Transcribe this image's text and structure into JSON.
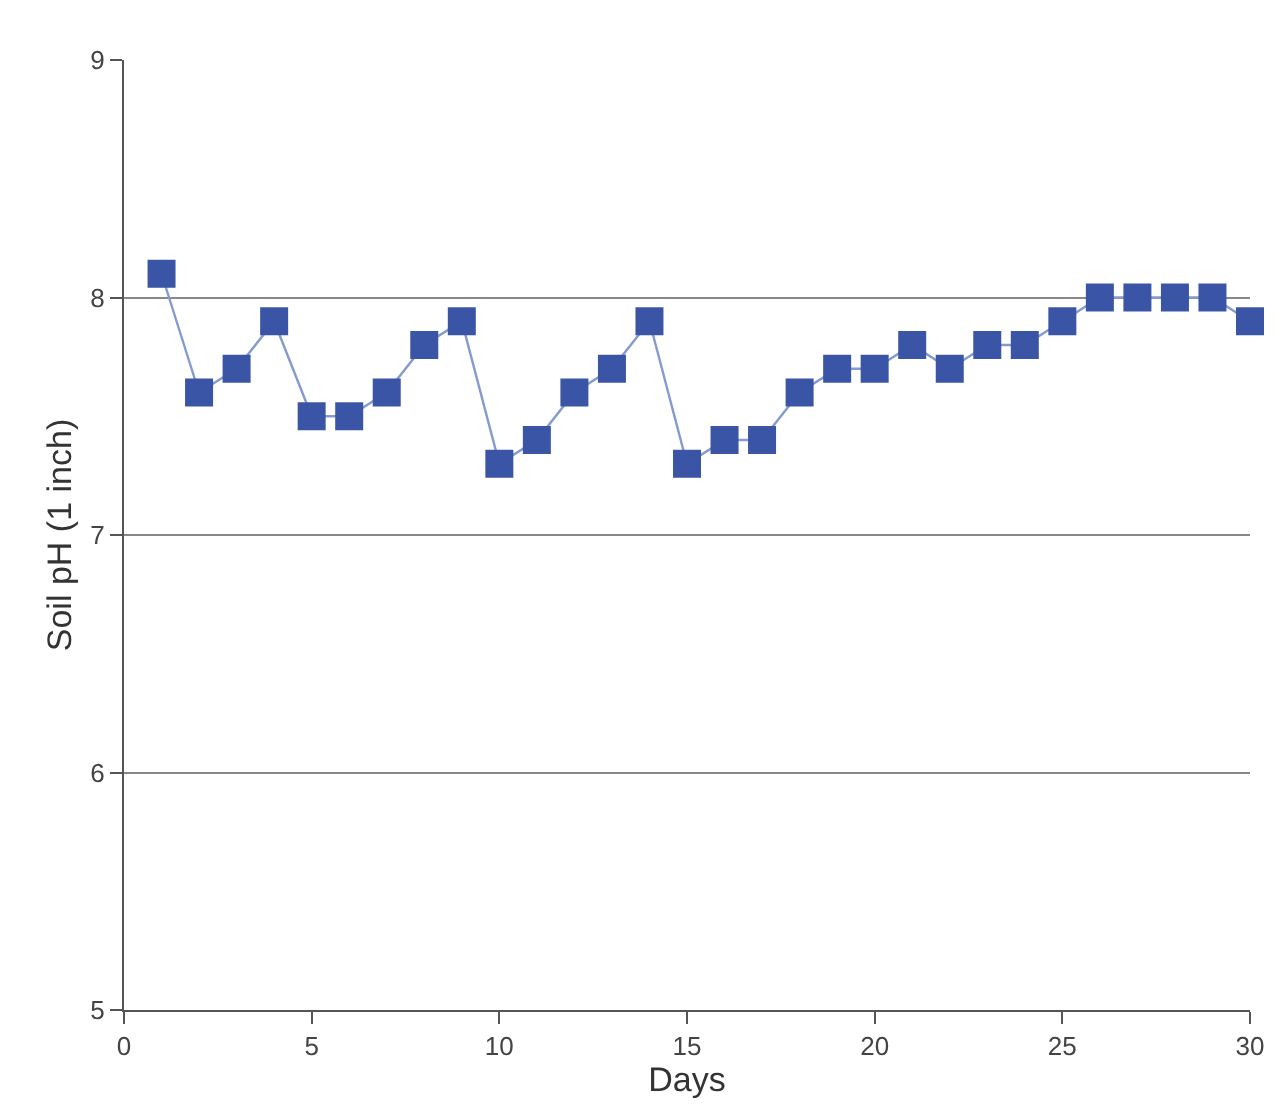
{
  "chart_data": {
    "type": "line",
    "xlabel": "Days",
    "ylabel": "Soil pH (1 inch)",
    "x": [
      1,
      2,
      3,
      4,
      5,
      6,
      7,
      8,
      9,
      10,
      11,
      12,
      13,
      14,
      15,
      16,
      17,
      18,
      19,
      20,
      21,
      22,
      23,
      24,
      25,
      26,
      27,
      28,
      29,
      30
    ],
    "series": [
      {
        "color": "#3b55a6",
        "values": [
          8.1,
          7.6,
          7.7,
          7.9,
          7.5,
          7.5,
          7.6,
          7.8,
          7.9,
          7.3,
          7.4,
          7.6,
          7.7,
          7.9,
          7.3,
          7.4,
          7.4,
          7.6,
          7.7,
          7.7,
          7.8,
          7.7,
          7.8,
          7.8,
          7.9,
          8.0,
          8.0,
          8.0,
          8.0,
          7.9
        ]
      }
    ],
    "xlim": [
      0,
      30
    ],
    "xticks": [
      0,
      5,
      10,
      15,
      20,
      25,
      30
    ],
    "ylim": [
      5,
      9
    ],
    "yticks": [
      5,
      6,
      7,
      8,
      9
    ],
    "grid": "y",
    "marker": "square",
    "line_style": "solid",
    "legend": false
  }
}
